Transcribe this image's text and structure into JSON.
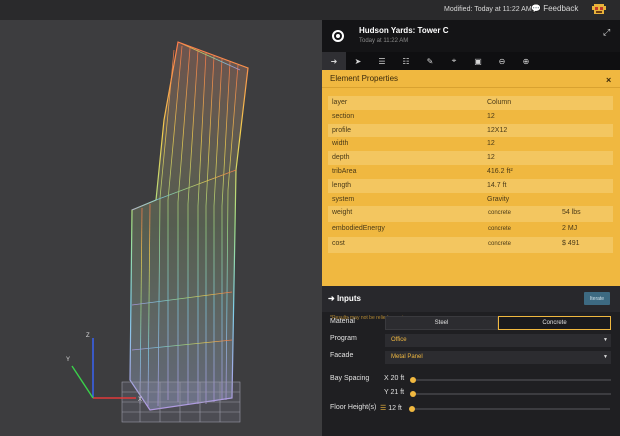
{
  "topbar": {
    "modified": "Modified: Today at 11:22 AM",
    "feedback": "Feedback"
  },
  "project": {
    "title": "Hudson Yards: Tower C",
    "subtitle": "Today at 11:22 AM"
  },
  "toolbar": {
    "icons": [
      "logout-icon",
      "forward-icon",
      "layers-icon",
      "sliders-icon",
      "brush-icon",
      "crop-icon",
      "cube-icon",
      "zoom-out-icon",
      "zoom-in-icon"
    ]
  },
  "element_properties": {
    "title": "Element Properties",
    "close": "×",
    "rows": [
      {
        "key": "layer",
        "value": "Column"
      },
      {
        "key": "section",
        "value": "12"
      },
      {
        "key": "profile",
        "value": "12X12"
      },
      {
        "key": "width",
        "value": "12"
      },
      {
        "key": "depth",
        "value": "12"
      },
      {
        "key": "tribArea",
        "value": "416.2 ft²"
      },
      {
        "key": "length",
        "value": "14.7 ft"
      },
      {
        "key": "system",
        "value": "Gravity"
      },
      {
        "key": "weight",
        "material": "concrete",
        "value": "54 lbs"
      },
      {
        "key": "embodiedEnergy",
        "material": "concrete",
        "value": "2 MJ"
      },
      {
        "key": "cost",
        "material": "concrete",
        "value": "$ 491"
      }
    ],
    "note": "*Results may not be relied upon in any way"
  },
  "inputs": {
    "title": "Inputs",
    "iterate": "Iterate",
    "material_label": "Material",
    "material_options": [
      "Steel",
      "Concrete"
    ],
    "program_label": "Program",
    "program_value": "Office",
    "facade_label": "Facade",
    "facade_value": "Metal Panel",
    "bay_spacing_label": "Bay Spacing",
    "bay_x_label": "X",
    "bay_x_value": "20 ft",
    "bay_y_label": "Y",
    "bay_y_value": "21 ft",
    "floor_height_label": "Floor Height(s)",
    "floor_height_value": "12 ft"
  },
  "axes": {
    "x": "X",
    "y": "Y",
    "z": "Z"
  },
  "colors": {
    "accent": "#f0b840",
    "panel": "#1f1f22",
    "viewport": "#3d3d3f"
  }
}
